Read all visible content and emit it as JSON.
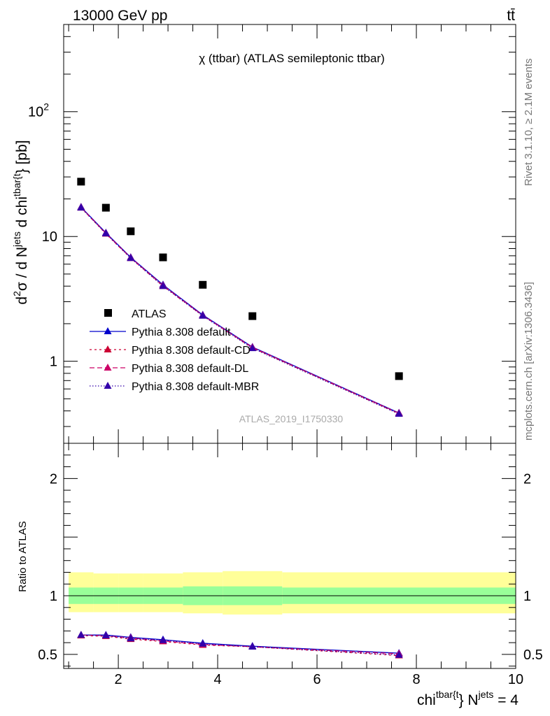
{
  "header": {
    "left": "13000 GeV pp",
    "right": "tt̄"
  },
  "side_labels": {
    "rivet": "Rivet 3.1.10, ≥ 2.1M events",
    "mcplots": "mcplots.cern.ch [arXiv:1306.3436]"
  },
  "colors": {
    "atlas": "#000000",
    "default": "#0000cc",
    "cd": "#cc0033",
    "dl": "#cc0066",
    "mbr": "#3300aa",
    "band_inner": "#99ff99",
    "band_outer": "#ffff99"
  },
  "chart_data": [
    {
      "type": "line",
      "title": "χ (ttbar) (ATLAS semileptonic ttbar)",
      "watermark": "ATLAS_2019_I1750330",
      "ylabel": {
        "main": "d",
        "sup1": "2",
        "mid": "σ /  d N",
        "sup2": "jets",
        "mid2": " d chi",
        "sup3": "tbar{t",
        "end": "} [pb]"
      },
      "xlim": [
        0.9,
        10
      ],
      "ylim": [
        0.22,
        500
      ],
      "yscale": "log",
      "y_tick_labels": [
        {
          "value": 1,
          "label": "1"
        },
        {
          "value": 10,
          "label": "10"
        },
        {
          "value": 100,
          "label": "10",
          "sup": "2"
        }
      ],
      "legend": {
        "placement": "bottom-left",
        "entries": [
          "ATLAS",
          "Pythia 8.308 default",
          "Pythia 8.308 default-CD",
          "Pythia 8.308 default-DL",
          "Pythia 8.308 default-MBR"
        ]
      },
      "x": [
        1.25,
        1.75,
        2.25,
        2.9,
        3.7,
        4.7,
        7.65
      ],
      "series": [
        {
          "name": "ATLAS",
          "values": [
            27.5,
            17.0,
            11.0,
            6.8,
            4.1,
            2.3,
            0.76
          ]
        },
        {
          "name": "Pythia 8.308 default",
          "values": [
            17.2,
            10.7,
            6.8,
            4.1,
            2.35,
            1.3,
            0.385
          ]
        },
        {
          "name": "Pythia 8.308 default-CD",
          "values": [
            17.0,
            10.5,
            6.7,
            4.0,
            2.32,
            1.28,
            0.38
          ]
        },
        {
          "name": "Pythia 8.308 default-DL",
          "values": [
            17.1,
            10.6,
            6.75,
            4.05,
            2.33,
            1.29,
            0.383
          ]
        },
        {
          "name": "Pythia 8.308 default-MBR",
          "values": [
            17.0,
            10.55,
            6.7,
            4.0,
            2.31,
            1.27,
            0.378
          ]
        }
      ]
    },
    {
      "type": "line",
      "ylabel": "Ratio to ATLAS",
      "xlabel": {
        "main": "chi",
        "sup1": "tbar{t",
        "mid": "} N",
        "sup2": "jets",
        "end": " = 4"
      },
      "xlim": [
        0.9,
        10
      ],
      "ylim": [
        0.38,
        2.3
      ],
      "x_ticks": [
        2,
        4,
        6,
        8,
        10
      ],
      "y_ticks": [
        0.5,
        1,
        2
      ],
      "bands": [
        {
          "x0": 1.0,
          "x1": 1.5,
          "inner": [
            0.93,
            1.07
          ],
          "outer": [
            0.86,
            1.2
          ]
        },
        {
          "x0": 1.5,
          "x1": 2.0,
          "inner": [
            0.93,
            1.07
          ],
          "outer": [
            0.86,
            1.19
          ]
        },
        {
          "x0": 2.0,
          "x1": 2.5,
          "inner": [
            0.93,
            1.07
          ],
          "outer": [
            0.86,
            1.19
          ]
        },
        {
          "x0": 2.5,
          "x1": 3.3,
          "inner": [
            0.93,
            1.07
          ],
          "outer": [
            0.86,
            1.19
          ]
        },
        {
          "x0": 3.3,
          "x1": 4.1,
          "inner": [
            0.92,
            1.08
          ],
          "outer": [
            0.85,
            1.2
          ]
        },
        {
          "x0": 4.1,
          "x1": 5.3,
          "inner": [
            0.92,
            1.08
          ],
          "outer": [
            0.84,
            1.21
          ]
        },
        {
          "x0": 5.3,
          "x1": 10.0,
          "inner": [
            0.93,
            1.07
          ],
          "outer": [
            0.85,
            1.2
          ]
        }
      ],
      "x": [
        1.25,
        1.75,
        2.25,
        2.9,
        3.7,
        4.7,
        7.65
      ],
      "series": [
        {
          "name": "Pythia 8.308 default",
          "values": [
            0.665,
            0.665,
            0.645,
            0.625,
            0.595,
            0.57,
            0.51
          ]
        },
        {
          "name": "Pythia 8.308 default-CD",
          "values": [
            0.66,
            0.655,
            0.63,
            0.61,
            0.58,
            0.565,
            0.49
          ]
        },
        {
          "name": "Pythia 8.308 default-DL",
          "values": [
            0.665,
            0.66,
            0.64,
            0.615,
            0.585,
            0.565,
            0.505
          ]
        },
        {
          "name": "Pythia 8.308 default-MBR",
          "values": [
            0.665,
            0.66,
            0.635,
            0.62,
            0.59,
            0.565,
            0.495
          ]
        }
      ]
    }
  ]
}
